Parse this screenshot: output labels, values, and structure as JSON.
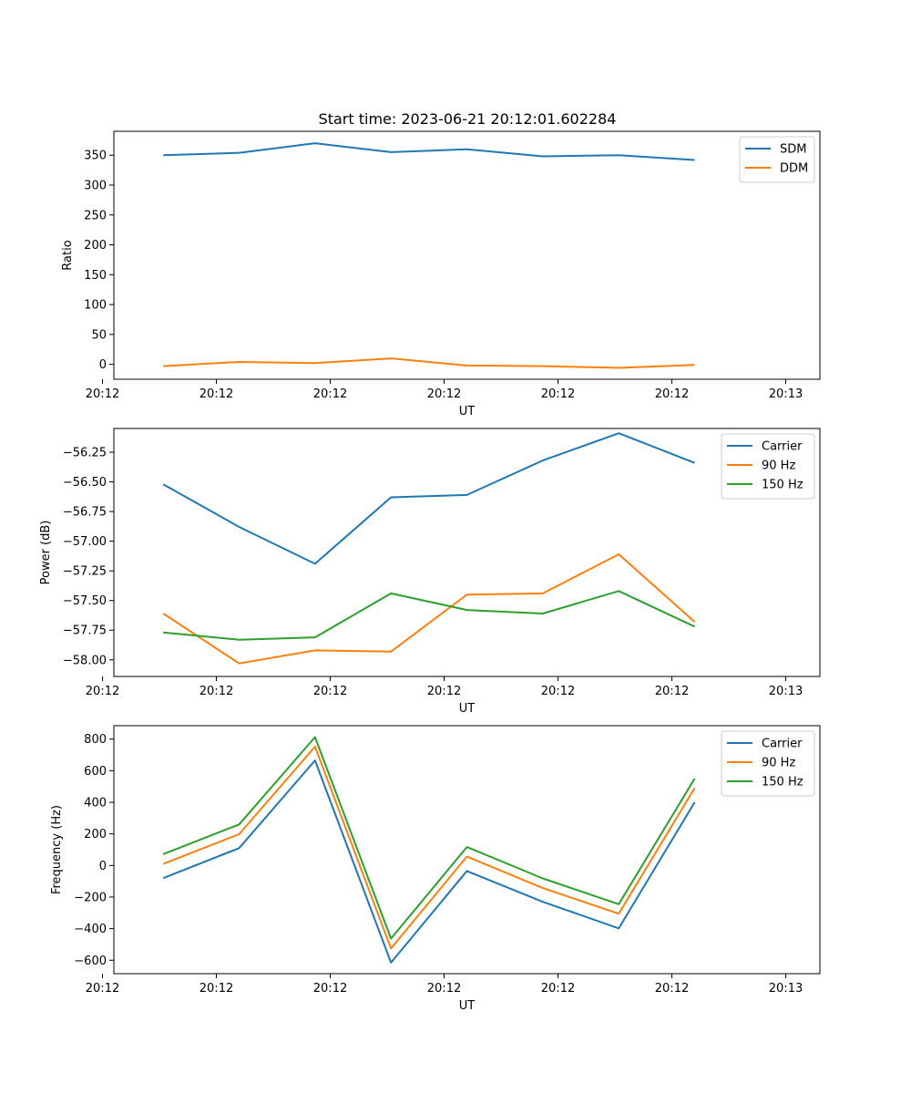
{
  "figure": {
    "title": "Start time: 2023-06-21 20:12:01.602284"
  },
  "colors": {
    "blue": "#1f77b4",
    "orange": "#ff7f0e",
    "green": "#2ca02c"
  },
  "chart_data": [
    {
      "type": "line",
      "xlabel": "UT",
      "ylabel": "Ratio",
      "xticks": [
        "20:12",
        "20:12",
        "20:12",
        "20:12",
        "20:12",
        "20:12",
        "20:13"
      ],
      "xlim": [
        -0.65,
        8.65
      ],
      "ylim": [
        -25,
        390
      ],
      "yticks": [
        0,
        50,
        100,
        150,
        200,
        250,
        300,
        350
      ],
      "ytick_labels": [
        "0",
        "50",
        "100",
        "150",
        "200",
        "250",
        "300",
        "350"
      ],
      "legend": "top-right",
      "x": [
        0,
        1,
        2,
        3,
        4,
        5,
        6,
        7
      ],
      "series": [
        {
          "name": "SDM",
          "color": "#1f77b4",
          "values": [
            350,
            354,
            370,
            355,
            360,
            348,
            350,
            342
          ]
        },
        {
          "name": "DDM",
          "color": "#ff7f0e",
          "values": [
            -3,
            4,
            2,
            10,
            -2,
            -3,
            -6,
            -1
          ]
        }
      ]
    },
    {
      "type": "line",
      "xlabel": "UT",
      "ylabel": "Power (dB)",
      "xticks": [
        "20:12",
        "20:12",
        "20:12",
        "20:12",
        "20:12",
        "20:12",
        "20:13"
      ],
      "xlim": [
        -0.65,
        8.65
      ],
      "ylim": [
        -58.14,
        -56.05
      ],
      "yticks": [
        -58.0,
        -57.75,
        -57.5,
        -57.25,
        -57.0,
        -56.75,
        -56.5,
        -56.25
      ],
      "ytick_labels": [
        "−58.00",
        "−57.75",
        "−57.50",
        "−57.25",
        "−57.00",
        "−56.75",
        "−56.50",
        "−56.25"
      ],
      "legend": "top-right",
      "x": [
        0,
        1,
        2,
        3,
        4,
        5,
        6,
        7
      ],
      "series": [
        {
          "name": "Carrier",
          "color": "#1f77b4",
          "values": [
            -56.52,
            -56.88,
            -57.19,
            -56.63,
            -56.61,
            -56.32,
            -56.09,
            -56.34
          ]
        },
        {
          "name": "90 Hz",
          "color": "#ff7f0e",
          "values": [
            -57.61,
            -58.03,
            -57.92,
            -57.93,
            -57.45,
            -57.44,
            -57.11,
            -57.68
          ]
        },
        {
          "name": "150 Hz",
          "color": "#2ca02c",
          "values": [
            -57.77,
            -57.83,
            -57.81,
            -57.44,
            -57.58,
            -57.61,
            -57.42,
            -57.72
          ]
        }
      ]
    },
    {
      "type": "line",
      "xlabel": "UT",
      "ylabel": "Frequency (Hz)",
      "xticks": [
        "20:12",
        "20:12",
        "20:12",
        "20:12",
        "20:12",
        "20:12",
        "20:13"
      ],
      "xlim": [
        -0.65,
        8.65
      ],
      "ylim": [
        -685,
        885
      ],
      "yticks": [
        -600,
        -400,
        -200,
        0,
        200,
        400,
        600,
        800
      ],
      "ytick_labels": [
        "−600",
        "−400",
        "−200",
        "0",
        "200",
        "400",
        "600",
        "800"
      ],
      "legend": "top-right",
      "x": [
        0,
        1,
        2,
        3,
        4,
        5,
        6,
        7
      ],
      "series": [
        {
          "name": "Carrier",
          "color": "#1f77b4",
          "values": [
            -80,
            110,
            665,
            -615,
            -35,
            -230,
            -398,
            400
          ]
        },
        {
          "name": "90 Hz",
          "color": "#ff7f0e",
          "values": [
            10,
            198,
            752,
            -525,
            56,
            -143,
            -305,
            490
          ]
        },
        {
          "name": "150 Hz",
          "color": "#2ca02c",
          "values": [
            72,
            260,
            813,
            -463,
            117,
            -82,
            -245,
            550
          ]
        }
      ]
    }
  ]
}
